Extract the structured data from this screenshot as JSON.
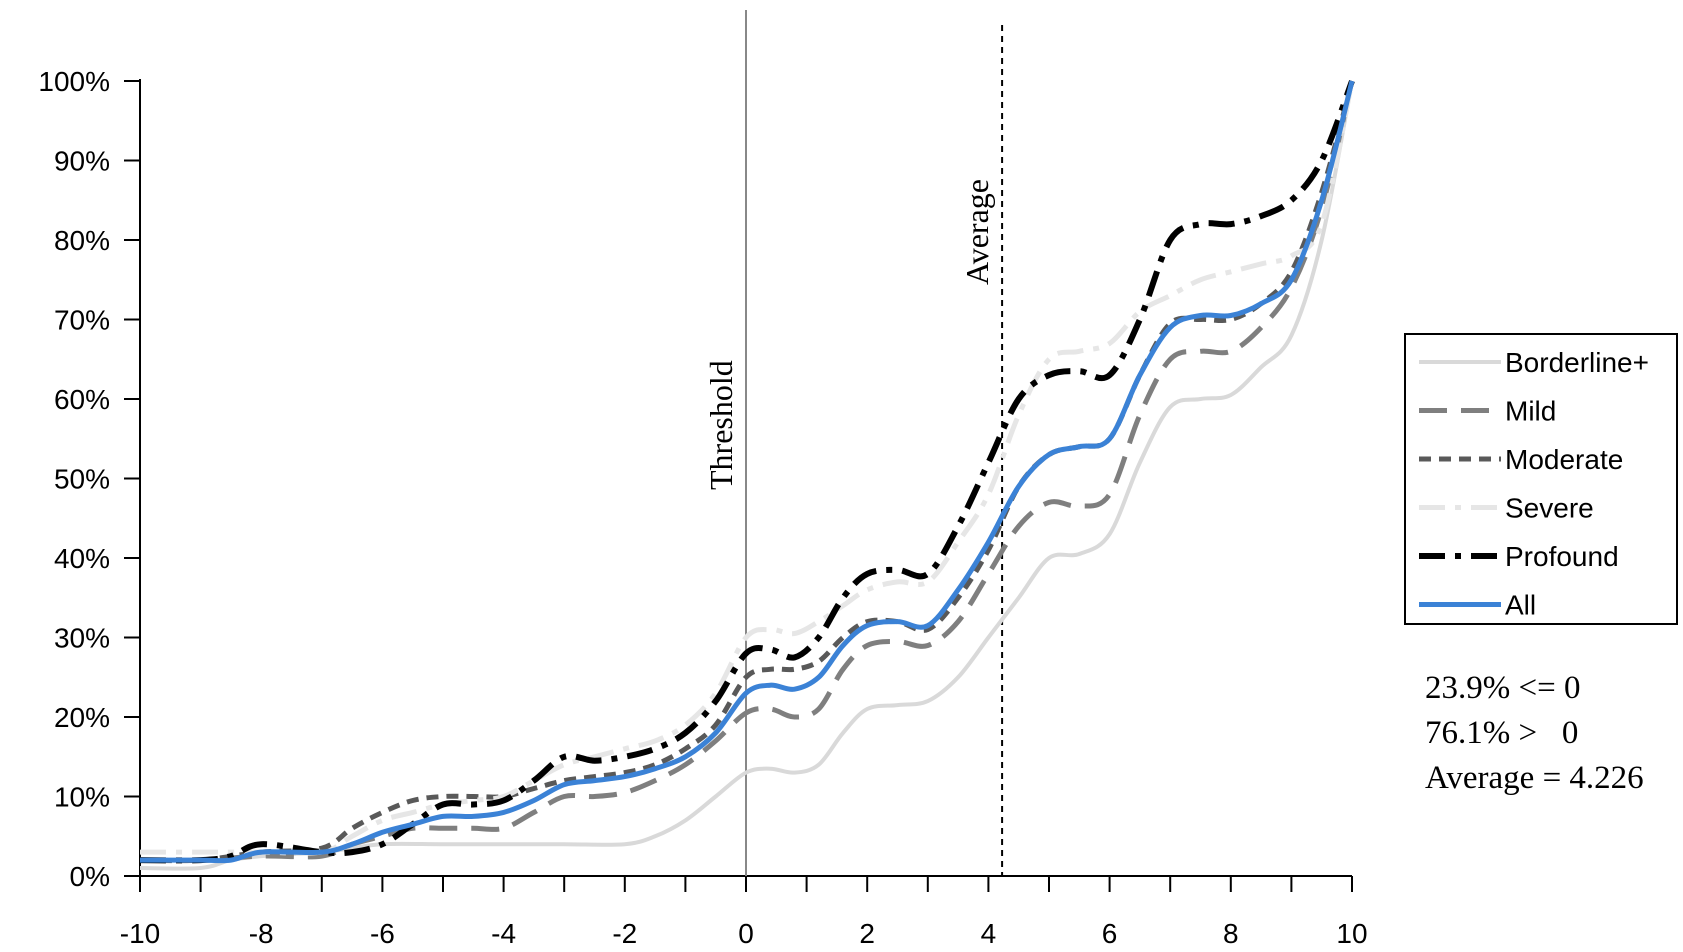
{
  "chart_data": {
    "type": "line",
    "xlim": [
      -10,
      10
    ],
    "ylim": [
      0,
      100
    ],
    "x_ticks": [
      "-10",
      "-8",
      "-6",
      "-4",
      "-2",
      "0",
      "2",
      "4",
      "6",
      "8",
      "10"
    ],
    "y_ticks": [
      "0%",
      "10%",
      "20%",
      "30%",
      "40%",
      "50%",
      "60%",
      "70%",
      "80%",
      "90%",
      "100%"
    ],
    "grid": false,
    "legend_position": "right",
    "reference_lines": [
      {
        "label": "Threshold",
        "x": 0,
        "style": "solid",
        "color": "#888888"
      },
      {
        "label": "Average",
        "x": 4.226,
        "style": "dashed",
        "color": "#000000"
      }
    ],
    "series": [
      {
        "name": "Borderline+",
        "color": "#d9d9d9",
        "dash": "solid",
        "width": 4,
        "points": [
          [
            -10,
            1
          ],
          [
            -9,
            1
          ],
          [
            -8.5,
            2
          ],
          [
            -8,
            2.5
          ],
          [
            -7,
            3
          ],
          [
            -6.5,
            3.5
          ],
          [
            -6,
            4
          ],
          [
            -5,
            4
          ],
          [
            -4,
            4
          ],
          [
            -3,
            4
          ],
          [
            -2,
            4
          ],
          [
            -1.5,
            5
          ],
          [
            -1,
            7
          ],
          [
            -0.5,
            10
          ],
          [
            0,
            13
          ],
          [
            0.4,
            13.5
          ],
          [
            0.8,
            13
          ],
          [
            1.2,
            14
          ],
          [
            1.6,
            18
          ],
          [
            2,
            21
          ],
          [
            2.5,
            21.5
          ],
          [
            3,
            22
          ],
          [
            3.5,
            25
          ],
          [
            4,
            30
          ],
          [
            4.5,
            35
          ],
          [
            5,
            40
          ],
          [
            5.5,
            40.5
          ],
          [
            6,
            43
          ],
          [
            6.5,
            52
          ],
          [
            7,
            59
          ],
          [
            7.5,
            60
          ],
          [
            8,
            60.5
          ],
          [
            8.5,
            64
          ],
          [
            9,
            68
          ],
          [
            9.5,
            80
          ],
          [
            10,
            100
          ]
        ]
      },
      {
        "name": "Mild",
        "color": "#7f7f7f",
        "dash": "long-dash",
        "width": 5,
        "points": [
          [
            -10,
            2
          ],
          [
            -9,
            2
          ],
          [
            -8,
            2.5
          ],
          [
            -7,
            2.5
          ],
          [
            -6.5,
            4
          ],
          [
            -6,
            5
          ],
          [
            -5.5,
            6
          ],
          [
            -5,
            6
          ],
          [
            -4.5,
            6
          ],
          [
            -4,
            6
          ],
          [
            -3.5,
            8
          ],
          [
            -3,
            10
          ],
          [
            -2.5,
            10
          ],
          [
            -2,
            10.5
          ],
          [
            -1.5,
            12
          ],
          [
            -1,
            14
          ],
          [
            -0.5,
            17
          ],
          [
            0,
            20.5
          ],
          [
            0.4,
            21
          ],
          [
            0.8,
            20
          ],
          [
            1.2,
            21
          ],
          [
            1.6,
            26
          ],
          [
            2,
            29
          ],
          [
            2.5,
            29.5
          ],
          [
            3,
            29
          ],
          [
            3.5,
            32
          ],
          [
            4,
            38
          ],
          [
            4.5,
            44
          ],
          [
            5,
            47
          ],
          [
            5.5,
            46.5
          ],
          [
            6,
            48
          ],
          [
            6.5,
            58
          ],
          [
            7,
            65
          ],
          [
            7.5,
            66
          ],
          [
            8,
            66
          ],
          [
            8.5,
            69
          ],
          [
            9,
            74
          ],
          [
            9.5,
            84
          ],
          [
            10,
            100
          ]
        ]
      },
      {
        "name": "Moderate",
        "color": "#595959",
        "dash": "short-dash",
        "width": 5,
        "points": [
          [
            -10,
            2
          ],
          [
            -9,
            2
          ],
          [
            -8,
            3
          ],
          [
            -7,
            3.5
          ],
          [
            -6.5,
            6
          ],
          [
            -6,
            8
          ],
          [
            -5.5,
            9.5
          ],
          [
            -5,
            10
          ],
          [
            -4.5,
            10
          ],
          [
            -4,
            10
          ],
          [
            -3.5,
            11
          ],
          [
            -3,
            12
          ],
          [
            -2.5,
            12.5
          ],
          [
            -2,
            13
          ],
          [
            -1.5,
            14
          ],
          [
            -1,
            16
          ],
          [
            -0.5,
            19
          ],
          [
            0,
            25
          ],
          [
            0.4,
            26
          ],
          [
            0.8,
            26
          ],
          [
            1.2,
            27
          ],
          [
            1.6,
            30
          ],
          [
            2,
            32
          ],
          [
            2.5,
            32
          ],
          [
            3,
            31
          ],
          [
            3.5,
            35
          ],
          [
            4,
            41
          ],
          [
            4.5,
            49
          ],
          [
            5,
            53
          ],
          [
            5.5,
            54
          ],
          [
            6,
            55
          ],
          [
            6.5,
            63
          ],
          [
            7,
            69.5
          ],
          [
            7.5,
            70
          ],
          [
            8,
            70
          ],
          [
            8.5,
            72
          ],
          [
            9,
            76
          ],
          [
            9.5,
            86
          ],
          [
            10,
            100
          ]
        ]
      },
      {
        "name": "Severe",
        "color": "#e6e6e6",
        "dash": "dash-dot",
        "width": 5,
        "points": [
          [
            -10,
            3
          ],
          [
            -9,
            3
          ],
          [
            -8.5,
            3
          ],
          [
            -8,
            3
          ],
          [
            -7,
            3
          ],
          [
            -6.5,
            5
          ],
          [
            -6,
            7
          ],
          [
            -5.5,
            8
          ],
          [
            -5,
            9
          ],
          [
            -4.5,
            9.5
          ],
          [
            -4,
            10
          ],
          [
            -3.5,
            12
          ],
          [
            -3,
            14
          ],
          [
            -2.5,
            15
          ],
          [
            -2,
            16
          ],
          [
            -1.5,
            17
          ],
          [
            -1,
            19
          ],
          [
            -0.5,
            23
          ],
          [
            0,
            30
          ],
          [
            0.4,
            31
          ],
          [
            0.8,
            30.5
          ],
          [
            1.2,
            32
          ],
          [
            1.6,
            34
          ],
          [
            2,
            36
          ],
          [
            2.5,
            37
          ],
          [
            3,
            37
          ],
          [
            3.5,
            42
          ],
          [
            4,
            48
          ],
          [
            4.5,
            58
          ],
          [
            5,
            65
          ],
          [
            5.5,
            66
          ],
          [
            6,
            67
          ],
          [
            6.5,
            71
          ],
          [
            7,
            73
          ],
          [
            7.5,
            75
          ],
          [
            8,
            76
          ],
          [
            8.5,
            77
          ],
          [
            9,
            78
          ],
          [
            9.5,
            82
          ],
          [
            10,
            100
          ]
        ]
      },
      {
        "name": "Profound",
        "color": "#000000",
        "dash": "dash-dot",
        "width": 6,
        "points": [
          [
            -10,
            2
          ],
          [
            -9,
            2
          ],
          [
            -8.5,
            2.5
          ],
          [
            -8,
            4
          ],
          [
            -7,
            3
          ],
          [
            -6.5,
            3
          ],
          [
            -6,
            4
          ],
          [
            -5.5,
            6.5
          ],
          [
            -5,
            9
          ],
          [
            -4.5,
            9
          ],
          [
            -4,
            9.5
          ],
          [
            -3.5,
            12
          ],
          [
            -3,
            15
          ],
          [
            -2.5,
            14.5
          ],
          [
            -2,
            15
          ],
          [
            -1.5,
            16
          ],
          [
            -1,
            18
          ],
          [
            -0.5,
            22
          ],
          [
            0,
            28
          ],
          [
            0.4,
            28.5
          ],
          [
            0.8,
            27.5
          ],
          [
            1.2,
            30
          ],
          [
            1.6,
            35
          ],
          [
            2,
            38
          ],
          [
            2.5,
            38.5
          ],
          [
            3,
            38
          ],
          [
            3.5,
            44
          ],
          [
            4,
            52
          ],
          [
            4.5,
            60
          ],
          [
            5,
            63
          ],
          [
            5.5,
            63.5
          ],
          [
            6,
            63
          ],
          [
            6.5,
            70
          ],
          [
            7,
            80
          ],
          [
            7.5,
            82
          ],
          [
            8,
            82
          ],
          [
            8.5,
            83
          ],
          [
            9,
            85
          ],
          [
            9.5,
            90
          ],
          [
            10,
            100
          ]
        ]
      },
      {
        "name": "All",
        "color": "#3b82d6",
        "dash": "solid",
        "width": 5,
        "points": [
          [
            -10,
            2
          ],
          [
            -9,
            2
          ],
          [
            -8.5,
            2
          ],
          [
            -8,
            3
          ],
          [
            -7,
            3
          ],
          [
            -6.5,
            4
          ],
          [
            -6,
            5.5
          ],
          [
            -5.5,
            6.5
          ],
          [
            -5,
            7.5
          ],
          [
            -4.5,
            7.5
          ],
          [
            -4,
            8
          ],
          [
            -3.5,
            9.5
          ],
          [
            -3,
            11.5
          ],
          [
            -2.5,
            12
          ],
          [
            -2,
            12.5
          ],
          [
            -1.5,
            13.5
          ],
          [
            -1,
            15
          ],
          [
            -0.5,
            18
          ],
          [
            0,
            23
          ],
          [
            0.4,
            24
          ],
          [
            0.8,
            23.5
          ],
          [
            1.2,
            25
          ],
          [
            1.6,
            29
          ],
          [
            2,
            31.5
          ],
          [
            2.5,
            32
          ],
          [
            3,
            31.5
          ],
          [
            3.5,
            36
          ],
          [
            4,
            42
          ],
          [
            4.5,
            49
          ],
          [
            5,
            53
          ],
          [
            5.5,
            54
          ],
          [
            6,
            55
          ],
          [
            6.5,
            63
          ],
          [
            7,
            69
          ],
          [
            7.5,
            70.5
          ],
          [
            8,
            70.5
          ],
          [
            8.5,
            72
          ],
          [
            9,
            75
          ],
          [
            9.5,
            85
          ],
          [
            10,
            100
          ]
        ]
      }
    ],
    "annotations": [
      "23.9% <= 0",
      "76.1% >   0",
      "Average = 4.226"
    ]
  }
}
